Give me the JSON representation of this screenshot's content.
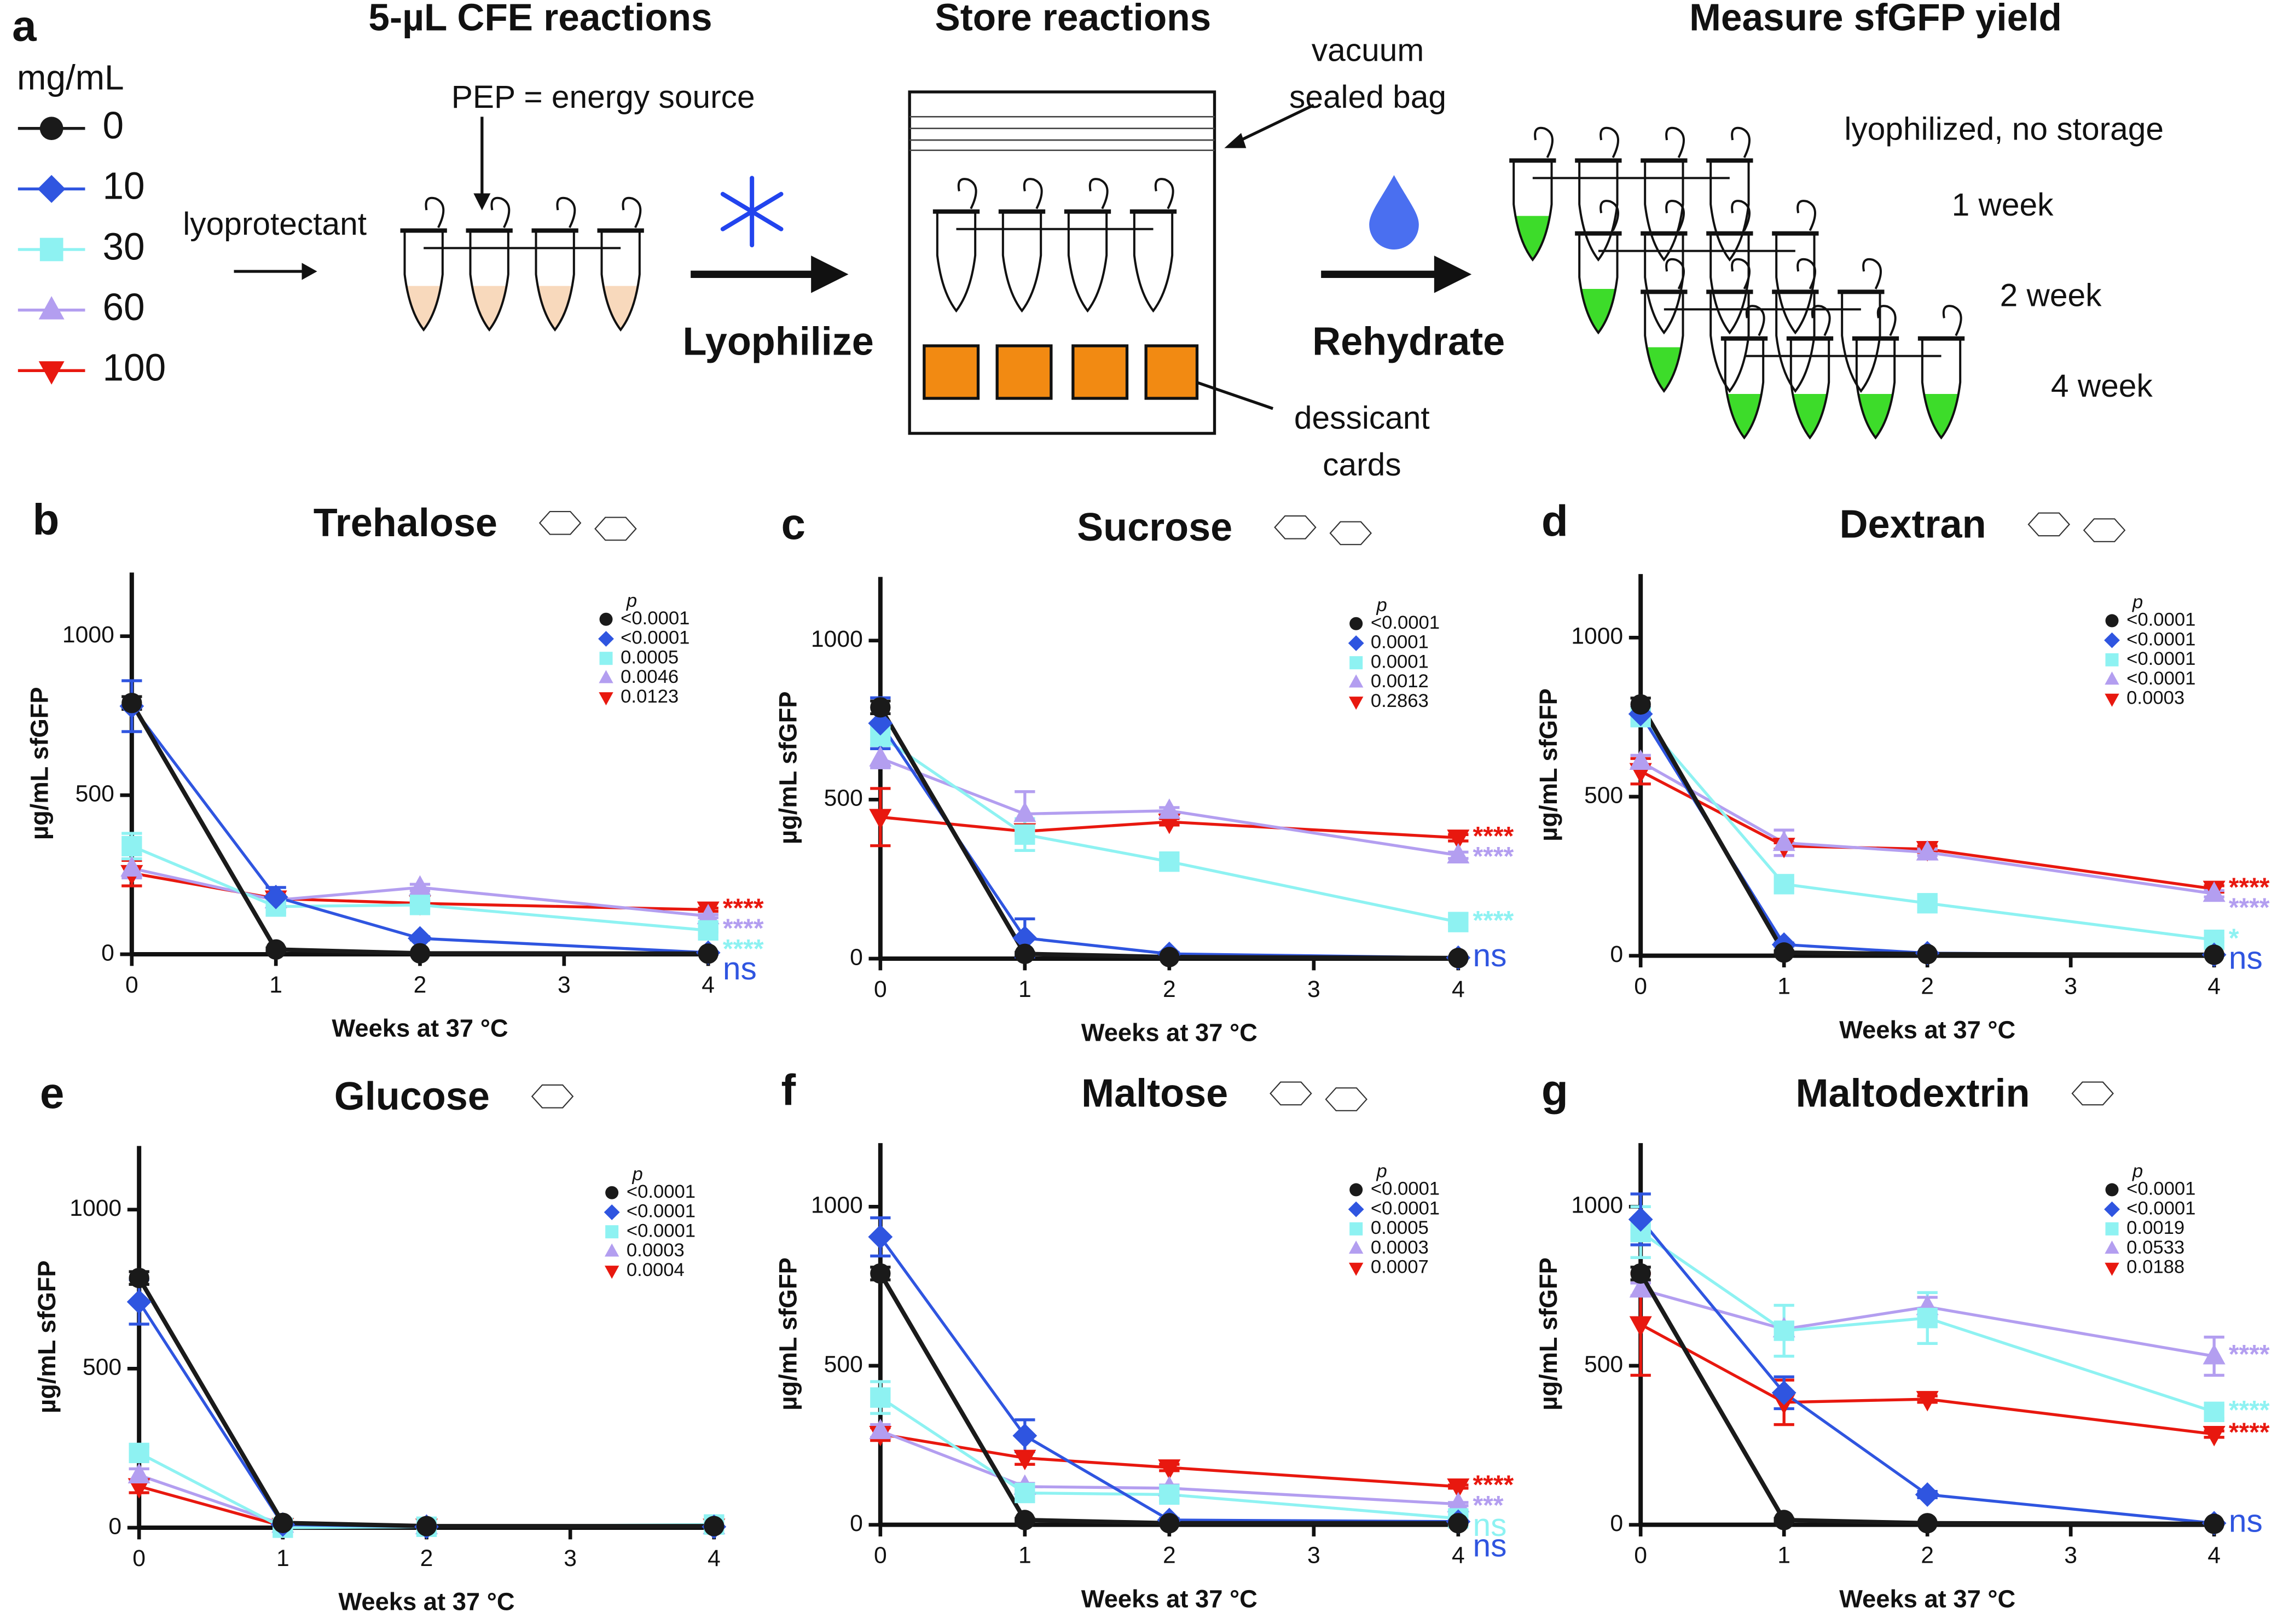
{
  "panel_a": {
    "letter": "a",
    "step_titles": [
      "5-µL CFE reactions",
      "Store reactions",
      "Measure sfGFP yield"
    ],
    "legend_title": "mg/mL",
    "legend": [
      {
        "name": "0",
        "color": "#1a1a1a"
      },
      {
        "name": "10",
        "color": "#2f55e0"
      },
      {
        "name": "30",
        "color": "#8ef2f2"
      },
      {
        "name": "60",
        "color": "#b39ef0"
      },
      {
        "name": "100",
        "color": "#e8180f"
      }
    ],
    "pep_label": "PEP = energy source",
    "lyoprotectant_label": "lyoprotectant",
    "lyophilize_label": "Lyophilize",
    "bag_label": [
      "vacuum",
      "sealed bag"
    ],
    "dessicant_label": [
      "dessicant",
      "cards"
    ],
    "rehydrate_label": "Rehydrate",
    "timepoints": [
      "lyophilized, no storage",
      "1 week",
      "2 week",
      "4 week"
    ]
  },
  "chart_data": [
    {
      "type": "line",
      "letter": "b",
      "title": "Trehalose",
      "xlabel": "Weeks at 37 °C",
      "ylabel": "µg/mL sfGFP",
      "x": [
        0,
        1,
        2,
        4
      ],
      "xlim": [
        0,
        4
      ],
      "xticks": [
        0,
        1,
        2,
        3,
        4
      ],
      "ylim": [
        0,
        1200
      ],
      "yticks": [
        0,
        500,
        1000
      ],
      "legend_title": "p",
      "series": [
        {
          "color": "#1a1a1a",
          "marker": "circle",
          "values": [
            790,
            15,
            3,
            2
          ],
          "errors": [
            20,
            5,
            2,
            2
          ],
          "p_value": "<0.0001"
        },
        {
          "color": "#2f55e0",
          "marker": "diamond",
          "values": [
            780,
            180,
            50,
            5
          ],
          "errors": [
            80,
            30,
            5,
            2
          ],
          "p_value": "<0.0001",
          "significance": "ns"
        },
        {
          "color": "#8ef2f2",
          "marker": "square",
          "values": [
            340,
            150,
            155,
            75
          ],
          "errors": [
            40,
            20,
            10,
            5
          ],
          "p_value": "0.0005",
          "significance": "****"
        },
        {
          "color": "#b39ef0",
          "marker": "triangle-up",
          "values": [
            270,
            170,
            210,
            120
          ],
          "errors": [
            30,
            10,
            10,
            5
          ],
          "p_value": "0.0046",
          "significance": "****"
        },
        {
          "color": "#e8180f",
          "marker": "triangle-down",
          "values": [
            255,
            175,
            160,
            140
          ],
          "errors": [
            40,
            10,
            5,
            5
          ],
          "p_value": "0.0123",
          "significance": "****"
        }
      ]
    },
    {
      "type": "line",
      "letter": "c",
      "title": "Sucrose",
      "xlabel": "Weeks at 37 °C",
      "ylabel": "µg/mL sfGFP",
      "x": [
        0,
        1,
        2,
        4
      ],
      "xlim": [
        0,
        4
      ],
      "xticks": [
        0,
        1,
        2,
        3,
        4
      ],
      "ylim": [
        0,
        1200
      ],
      "yticks": [
        0,
        500,
        1000
      ],
      "legend_title": "p",
      "series": [
        {
          "color": "#1a1a1a",
          "marker": "circle",
          "values": [
            790,
            15,
            5,
            2
          ],
          "errors": [
            20,
            5,
            2,
            2
          ],
          "p_value": "<0.0001"
        },
        {
          "color": "#2f55e0",
          "marker": "diamond",
          "values": [
            740,
            65,
            15,
            3
          ],
          "errors": [
            80,
            60,
            5,
            2
          ],
          "p_value": "0.0001",
          "significance": "ns"
        },
        {
          "color": "#8ef2f2",
          "marker": "square",
          "values": [
            700,
            390,
            305,
            115
          ],
          "errors": [
            30,
            50,
            10,
            5
          ],
          "p_value": "0.0001",
          "significance": "****"
        },
        {
          "color": "#b39ef0",
          "marker": "triangle-up",
          "values": [
            630,
            455,
            465,
            325
          ],
          "errors": [
            30,
            70,
            10,
            10
          ],
          "p_value": "0.0012",
          "significance": "****"
        },
        {
          "color": "#e8180f",
          "marker": "triangle-down",
          "values": [
            445,
            400,
            430,
            380
          ],
          "errors": [
            90,
            10,
            10,
            10
          ],
          "p_value": "0.2863",
          "significance": "****"
        }
      ]
    },
    {
      "type": "line",
      "letter": "d",
      "title": "Dextran",
      "xlabel": "Weeks at 37 °C",
      "ylabel": "µg/mL sfGFP",
      "x": [
        0,
        1,
        2,
        4
      ],
      "xlim": [
        0,
        4
      ],
      "xticks": [
        0,
        1,
        2,
        3,
        4
      ],
      "ylim": [
        0,
        1200
      ],
      "yticks": [
        0,
        500,
        1000
      ],
      "legend_title": "p",
      "series": [
        {
          "color": "#1a1a1a",
          "marker": "circle",
          "values": [
            790,
            10,
            5,
            3
          ],
          "errors": [
            20,
            5,
            2,
            2
          ],
          "p_value": "<0.0001"
        },
        {
          "color": "#2f55e0",
          "marker": "diamond",
          "values": [
            760,
            35,
            8,
            3
          ],
          "errors": [
            20,
            5,
            2,
            2
          ],
          "p_value": "<0.0001",
          "significance": "ns"
        },
        {
          "color": "#8ef2f2",
          "marker": "square",
          "values": [
            750,
            225,
            165,
            50
          ],
          "errors": [
            20,
            10,
            10,
            5
          ],
          "p_value": "<0.0001",
          "significance": "*"
        },
        {
          "color": "#b39ef0",
          "marker": "triangle-up",
          "values": [
            610,
            355,
            325,
            195
          ],
          "errors": [
            20,
            40,
            10,
            10
          ],
          "p_value": "<0.0001",
          "significance": "****"
        },
        {
          "color": "#e8180f",
          "marker": "triangle-down",
          "values": [
            580,
            345,
            335,
            210
          ],
          "errors": [
            40,
            10,
            10,
            10
          ],
          "p_value": "0.0003",
          "significance": "****"
        }
      ]
    },
    {
      "type": "line",
      "letter": "e",
      "title": "Glucose",
      "xlabel": "Weeks at 37 °C",
      "ylabel": "µg/mL sfGFP",
      "x": [
        0,
        1,
        2,
        4
      ],
      "xlim": [
        0,
        4
      ],
      "xticks": [
        0,
        1,
        2,
        3,
        4
      ],
      "ylim": [
        0,
        1200
      ],
      "yticks": [
        0,
        500,
        1000
      ],
      "legend_title": "p",
      "series": [
        {
          "color": "#1a1a1a",
          "marker": "circle",
          "values": [
            785,
            15,
            5,
            5
          ],
          "errors": [
            20,
            5,
            2,
            2
          ],
          "p_value": "<0.0001"
        },
        {
          "color": "#2f55e0",
          "marker": "diamond",
          "values": [
            710,
            10,
            3,
            3
          ],
          "errors": [
            70,
            5,
            2,
            2
          ],
          "p_value": "<0.0001"
        },
        {
          "color": "#8ef2f2",
          "marker": "square",
          "values": [
            235,
            0,
            3,
            10
          ],
          "errors": [
            20,
            5,
            2,
            2
          ],
          "p_value": "<0.0001"
        },
        {
          "color": "#b39ef0",
          "marker": "triangle-up",
          "values": [
            165,
            10,
            5,
            5
          ],
          "errors": [
            20,
            5,
            2,
            2
          ],
          "p_value": "0.0003"
        },
        {
          "color": "#e8180f",
          "marker": "triangle-down",
          "values": [
            130,
            5,
            3,
            3
          ],
          "errors": [
            20,
            5,
            2,
            2
          ],
          "p_value": "0.0004"
        }
      ]
    },
    {
      "type": "line",
      "letter": "f",
      "title": "Maltose",
      "xlabel": "Weeks at 37 °C",
      "ylabel": "µg/mL sfGFP",
      "x": [
        0,
        1,
        2,
        4
      ],
      "xlim": [
        0,
        4
      ],
      "xticks": [
        0,
        1,
        2,
        3,
        4
      ],
      "ylim": [
        0,
        1200
      ],
      "yticks": [
        0,
        500,
        1000
      ],
      "legend_title": "p",
      "series": [
        {
          "color": "#1a1a1a",
          "marker": "circle",
          "values": [
            790,
            15,
            5,
            5
          ],
          "errors": [
            20,
            5,
            2,
            2
          ],
          "p_value": "<0.0001"
        },
        {
          "color": "#2f55e0",
          "marker": "diamond",
          "values": [
            905,
            280,
            15,
            10
          ],
          "errors": [
            60,
            50,
            5,
            2
          ],
          "p_value": "<0.0001",
          "significance": "ns"
        },
        {
          "color": "#8ef2f2",
          "marker": "square",
          "values": [
            400,
            100,
            95,
            20
          ],
          "errors": [
            50,
            20,
            20,
            5
          ],
          "p_value": "0.0005",
          "significance": "ns"
        },
        {
          "color": "#b39ef0",
          "marker": "triangle-up",
          "values": [
            295,
            120,
            115,
            65
          ],
          "errors": [
            20,
            10,
            10,
            5
          ],
          "p_value": "0.0003",
          "significance": "***"
        },
        {
          "color": "#e8180f",
          "marker": "triangle-down",
          "values": [
            285,
            210,
            180,
            120
          ],
          "errors": [
            20,
            20,
            10,
            5
          ],
          "p_value": "0.0007",
          "significance": "****"
        }
      ]
    },
    {
      "type": "line",
      "letter": "g",
      "title": "Maltodextrin",
      "xlabel": "Weeks at 37 °C",
      "ylabel": "µg/mL sfGFP",
      "x": [
        0,
        1,
        2,
        4
      ],
      "xlim": [
        0,
        4
      ],
      "xticks": [
        0,
        1,
        2,
        3,
        4
      ],
      "ylim": [
        0,
        1200
      ],
      "yticks": [
        0,
        500,
        1000
      ],
      "legend_title": "p",
      "series": [
        {
          "color": "#1a1a1a",
          "marker": "circle",
          "values": [
            790,
            15,
            5,
            3
          ],
          "errors": [
            20,
            5,
            2,
            2
          ],
          "p_value": "<0.0001"
        },
        {
          "color": "#2f55e0",
          "marker": "diamond",
          "values": [
            960,
            415,
            95,
            5
          ],
          "errors": [
            80,
            50,
            10,
            2
          ],
          "p_value": "<0.0001",
          "significance": "ns"
        },
        {
          "color": "#8ef2f2",
          "marker": "square",
          "values": [
            920,
            610,
            650,
            355
          ],
          "errors": [
            80,
            80,
            80,
            20
          ],
          "p_value": "0.0019",
          "significance": "****"
        },
        {
          "color": "#b39ef0",
          "marker": "triangle-up",
          "values": [
            740,
            615,
            685,
            530
          ],
          "errors": [
            20,
            20,
            30,
            60
          ],
          "p_value": "0.0533",
          "significance": "****"
        },
        {
          "color": "#e8180f",
          "marker": "triangle-down",
          "values": [
            630,
            385,
            395,
            285
          ],
          "errors": [
            160,
            70,
            10,
            10
          ],
          "p_value": "0.0188",
          "significance": "****"
        }
      ]
    }
  ]
}
